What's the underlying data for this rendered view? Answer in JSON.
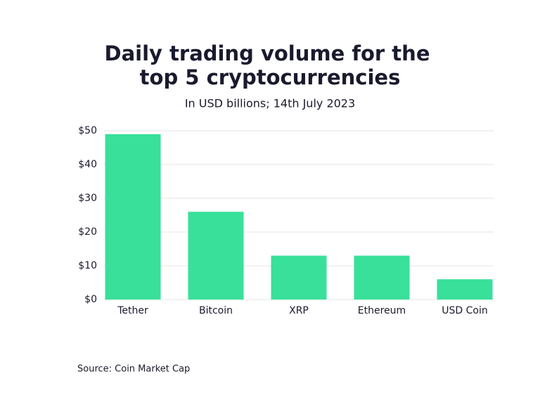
{
  "chart_data": {
    "type": "bar",
    "title": [
      "Daily trading volume for the",
      "top 5 cryptocurrencies"
    ],
    "subtitle": "In USD billions; 14th July 2023",
    "categories": [
      "Tether",
      "Bitcoin",
      "XRP",
      "Ethereum",
      "USD Coin"
    ],
    "values": [
      49,
      26,
      13,
      13,
      6
    ],
    "color": "#38e09a",
    "ylim": [
      0,
      50
    ],
    "yticks": [
      {
        "value": 0,
        "label": "$0"
      },
      {
        "value": 10,
        "label": "$10"
      },
      {
        "value": 20,
        "label": "$20"
      },
      {
        "value": 30,
        "label": "$30"
      },
      {
        "value": 40,
        "label": "$40"
      },
      {
        "value": 50,
        "label": "$50"
      }
    ],
    "grid": true,
    "source": "Source: Coin Market Cap"
  }
}
